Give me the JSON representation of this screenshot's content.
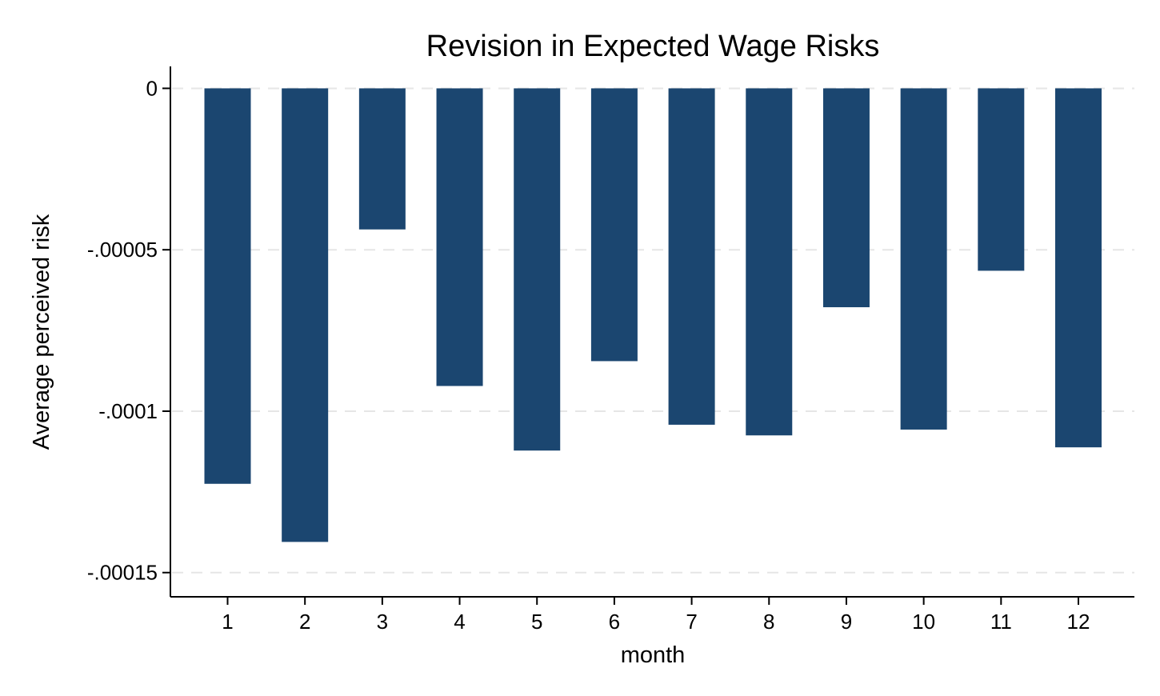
{
  "chart_data": {
    "type": "bar",
    "title": "Revision in Expected Wage Risks",
    "xlabel": "month",
    "ylabel": "Average perceived risk",
    "categories": [
      "1",
      "2",
      "3",
      "4",
      "5",
      "6",
      "7",
      "8",
      "9",
      "10",
      "11",
      "12"
    ],
    "values": [
      -0.0001225,
      -0.0001405,
      -4.37e-05,
      -9.22e-05,
      -0.0001122,
      -8.45e-05,
      -0.0001042,
      -0.0001075,
      -6.78e-05,
      -0.0001057,
      -5.65e-05,
      -0.0001112
    ],
    "ylim": [
      -0.0001575,
      6.8e-06
    ],
    "yticks": [
      {
        "value": 0,
        "label": "0"
      },
      {
        "value": -5e-05,
        "label": "-.00005"
      },
      {
        "value": -0.0001,
        "label": "-.0001"
      },
      {
        "value": -0.00015,
        "label": "-.00015"
      }
    ],
    "grid": true,
    "legend": "none",
    "bar_color": "#1b4670"
  }
}
